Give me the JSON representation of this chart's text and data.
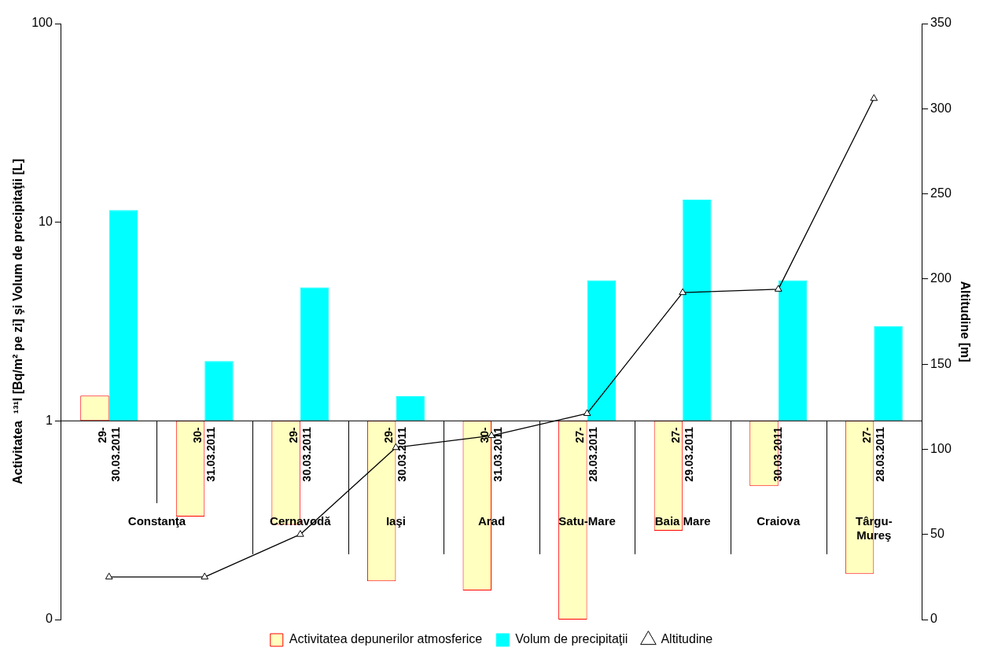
{
  "chart_data": {
    "type": "bar",
    "categories": [
      "29-30.03.2011",
      "30-31.03.2011",
      "29-30.03.2011",
      "29-30.03.2011",
      "30-31.03.2011",
      "27-28.03.2011",
      "27-29.03.2011",
      "30.03.2011",
      "27-28.03.2011"
    ],
    "series": [
      {
        "name": "Activitatea depunerilor atmosferice",
        "color": "#ffffc0",
        "base": [
          1,
          1,
          1,
          1,
          1,
          1,
          1,
          1,
          1
        ],
        "values": [
          0.34,
          -0.67,
          -0.7,
          -0.844,
          -0.86,
          -0.9,
          -0.72,
          -0.53,
          -0.83
        ]
      },
      {
        "name": "Volum de precipitaţii",
        "color": "#00ffff",
        "base": [
          1,
          1,
          1,
          1,
          null,
          1,
          1,
          1,
          1
        ],
        "values": [
          10.5,
          1.0,
          3.7,
          0.33,
          null,
          4.1,
          12,
          4.1,
          2.0
        ]
      },
      {
        "name": "Altitudine",
        "type": "line",
        "axis": "y2",
        "color": "#000000",
        "marker": "triangle",
        "values": [
          25,
          25,
          50,
          101,
          108,
          121,
          192,
          194,
          306
        ]
      }
    ],
    "annotations": [
      "Constanţa",
      "Cernavodă",
      "Iaşi",
      "Arad",
      "Satu-Mare",
      "Baia Mare",
      "Craiova",
      "Târgu-Mureş"
    ],
    "ylabel": "Activitatea  ¹³¹I [Bq/m² pe zi] şi Volum de precipitaţii [L]",
    "y2label": "Altitudine [m]",
    "log": "y",
    "ylim": [
      0.1,
      100
    ],
    "yticks": [
      {
        "value": 0.1,
        "label": "0"
      },
      1,
      10,
      100
    ],
    "y2lim": [
      0,
      350
    ],
    "y2ticks": [
      0,
      50,
      100,
      150,
      200,
      250,
      300,
      350
    ],
    "grid": false,
    "legend": "bottom"
  }
}
